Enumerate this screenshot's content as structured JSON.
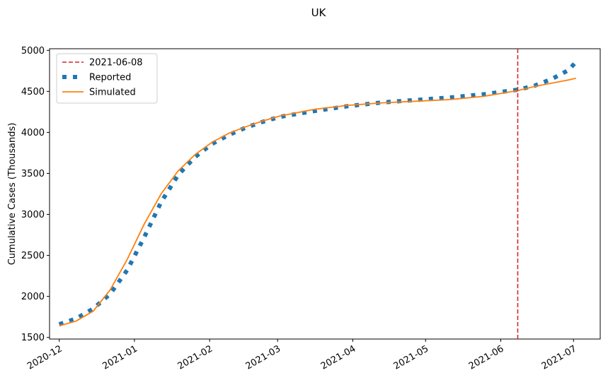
{
  "chart_data": {
    "type": "line",
    "title": "UK",
    "xlabel": "",
    "ylabel": "Cumulative Cases (Thousands)",
    "x_axis": {
      "type": "date",
      "range": [
        "2020-11-27",
        "2021-07-12"
      ],
      "ticks": [
        "2020-12-01",
        "2021-01-01",
        "2021-02-01",
        "2021-03-01",
        "2021-04-01",
        "2021-05-01",
        "2021-06-01",
        "2021-07-01"
      ],
      "tick_labels": [
        "2020-12",
        "2021-01",
        "2021-02",
        "2021-03",
        "2021-04",
        "2021-05",
        "2021-06",
        "2021-07"
      ]
    },
    "ylim": [
      1480,
      5020
    ],
    "yticks": [
      1500,
      2000,
      2500,
      3000,
      3500,
      4000,
      4500,
      5000
    ],
    "grid": false,
    "legend_position": "top-left",
    "vline": {
      "date": "2021-06-08",
      "label": "2021-06-08",
      "color": "#d62728",
      "style": "dashed"
    },
    "series": [
      {
        "name": "Reported",
        "color": "#1f77b4",
        "style": "dotted",
        "dates": [
          "2020-12-01",
          "2020-12-08",
          "2020-12-15",
          "2020-12-22",
          "2020-12-29",
          "2021-01-05",
          "2021-01-12",
          "2021-01-19",
          "2021-01-26",
          "2021-02-02",
          "2021-02-09",
          "2021-02-16",
          "2021-02-23",
          "2021-03-02",
          "2021-03-16",
          "2021-03-30",
          "2021-04-13",
          "2021-04-27",
          "2021-05-11",
          "2021-05-25",
          "2021-06-08",
          "2021-06-15",
          "2021-06-22",
          "2021-06-29",
          "2021-07-02"
        ],
        "values": [
          1660,
          1730,
          1850,
          2030,
          2320,
          2720,
          3150,
          3480,
          3700,
          3860,
          3970,
          4060,
          4130,
          4190,
          4260,
          4320,
          4365,
          4395,
          4425,
          4465,
          4520,
          4570,
          4650,
          4760,
          4860
        ]
      },
      {
        "name": "Simulated",
        "color": "#ff7f0e",
        "style": "solid",
        "dates": [
          "2020-12-01",
          "2020-12-08",
          "2020-12-15",
          "2020-12-22",
          "2020-12-29",
          "2021-01-05",
          "2021-01-12",
          "2021-01-19",
          "2021-01-26",
          "2021-02-02",
          "2021-02-09",
          "2021-02-16",
          "2021-02-23",
          "2021-03-02",
          "2021-03-16",
          "2021-03-30",
          "2021-04-13",
          "2021-04-27",
          "2021-05-11",
          "2021-05-25",
          "2021-06-08",
          "2021-06-15",
          "2021-06-22",
          "2021-06-29",
          "2021-07-02"
        ],
        "values": [
          1640,
          1700,
          1820,
          2080,
          2450,
          2880,
          3250,
          3530,
          3730,
          3880,
          3990,
          4070,
          4140,
          4200,
          4280,
          4330,
          4360,
          4380,
          4400,
          4440,
          4510,
          4560,
          4600,
          4640,
          4660
        ]
      }
    ]
  }
}
